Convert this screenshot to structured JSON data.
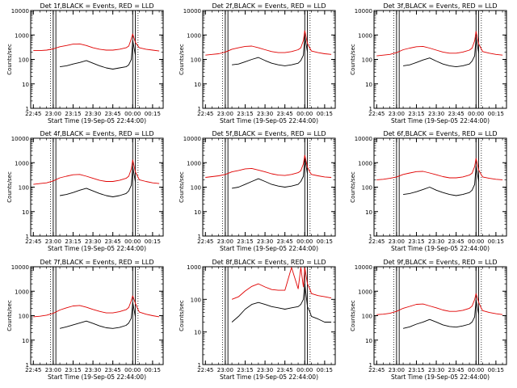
{
  "colors": {
    "events": "#000000",
    "lld": "#e00000",
    "frame": "#000000"
  },
  "chart_data": [
    {
      "type": "line",
      "title": "Det 1f,BLACK = Events, RED = LLD",
      "xlabel": "Start Time (19-Sep-05 22:44:00)",
      "ylabel": "Counts/sec",
      "y_scale": "log",
      "ylim": [
        1,
        10000
      ],
      "xlim": [
        "22:43",
        "00:23"
      ],
      "x_tick_labels": [
        "22:45",
        "23:00",
        "23:15",
        "23:30",
        "23:45",
        "00:00",
        "00:15"
      ],
      "y_tick_labels": [
        "1",
        "10",
        "100",
        "1000",
        "10000"
      ],
      "x_minutes": [
        0,
        5,
        10,
        15,
        20,
        25,
        30,
        35,
        40,
        45,
        50,
        55,
        60,
        65,
        70,
        72,
        74,
        75,
        77,
        79,
        80,
        85,
        90,
        95
      ],
      "series": [
        {
          "name": "BLACK = Events",
          "data": [
            null,
            null,
            null,
            null,
            50,
            55,
            65,
            75,
            90,
            70,
            55,
            45,
            40,
            45,
            50,
            60,
            100,
            600,
            150,
            null,
            null,
            null,
            null,
            null
          ]
        },
        {
          "name": "RED = LLD",
          "data": [
            230,
            230,
            240,
            270,
            330,
            370,
            420,
            430,
            370,
            300,
            260,
            240,
            240,
            260,
            300,
            350,
            700,
            1100,
            500,
            350,
            300,
            260,
            240,
            220
          ]
        }
      ],
      "vertical_markers_solid": [
        "23:00",
        "23:02",
        "00:00",
        "00:02"
      ],
      "vertical_markers_dotted": [
        "22:58",
        "00:04"
      ]
    },
    {
      "type": "line",
      "title": "Det 2f,BLACK = Events, RED = LLD",
      "xlabel": "Start Time (19-Sep-05 22:44:00)",
      "ylabel": "Counts/sec",
      "y_scale": "log",
      "ylim": [
        1,
        10000
      ],
      "xlim": [
        "22:43",
        "00:23"
      ],
      "x_tick_labels": [
        "22:45",
        "23:00",
        "23:15",
        "23:30",
        "23:45",
        "00:00",
        "00:15"
      ],
      "y_tick_labels": [
        "1",
        "10",
        "100",
        "1000",
        "10000"
      ],
      "x_minutes": [
        0,
        5,
        10,
        15,
        20,
        25,
        30,
        35,
        40,
        45,
        50,
        55,
        60,
        65,
        70,
        72,
        74,
        75,
        77,
        79,
        80,
        85,
        90,
        95
      ],
      "series": [
        {
          "name": "BLACK = Events",
          "data": [
            null,
            null,
            null,
            null,
            60,
            65,
            80,
            100,
            120,
            90,
            70,
            60,
            55,
            60,
            70,
            90,
            150,
            900,
            200,
            null,
            null,
            null,
            null,
            null
          ]
        },
        {
          "name": "RED = LLD",
          "data": [
            150,
            160,
            170,
            200,
            260,
            300,
            340,
            350,
            300,
            250,
            210,
            190,
            190,
            210,
            250,
            300,
            600,
            1500,
            450,
            280,
            220,
            190,
            170,
            160
          ]
        }
      ],
      "vertical_markers_solid": [
        "23:00",
        "23:02",
        "00:00",
        "00:02"
      ],
      "vertical_markers_dotted": [
        "22:58",
        "00:04"
      ]
    },
    {
      "type": "line",
      "title": "Det 3f,BLACK = Events, RED = LLD",
      "xlabel": "Start Time (19-Sep-05 22:44:00)",
      "ylabel": "Counts/sec",
      "y_scale": "log",
      "ylim": [
        1,
        10000
      ],
      "xlim": [
        "22:43",
        "00:23"
      ],
      "x_tick_labels": [
        "22:45",
        "23:00",
        "23:15",
        "23:30",
        "23:45",
        "00:00",
        "00:15"
      ],
      "y_tick_labels": [
        "1",
        "10",
        "100",
        "1000",
        "10000"
      ],
      "x_minutes": [
        0,
        5,
        10,
        15,
        20,
        25,
        30,
        35,
        40,
        45,
        50,
        55,
        60,
        65,
        70,
        72,
        74,
        75,
        77,
        79,
        80,
        85,
        90,
        95
      ],
      "series": [
        {
          "name": "BLACK = Events",
          "data": [
            null,
            null,
            null,
            null,
            55,
            60,
            75,
            95,
            115,
            85,
            65,
            55,
            50,
            55,
            65,
            85,
            140,
            800,
            180,
            null,
            null,
            null,
            null,
            null
          ]
        },
        {
          "name": "RED = LLD",
          "data": [
            140,
            150,
            160,
            190,
            250,
            290,
            330,
            340,
            290,
            240,
            200,
            180,
            180,
            200,
            240,
            290,
            580,
            1400,
            430,
            270,
            210,
            180,
            160,
            150
          ]
        }
      ],
      "vertical_markers_solid": [
        "23:00",
        "23:02",
        "00:00",
        "00:02"
      ],
      "vertical_markers_dotted": [
        "22:58",
        "00:04"
      ]
    },
    {
      "type": "line",
      "title": "Det 4f,BLACK = Events, RED = LLD",
      "xlabel": "Start Time (19-Sep-05 22:44:00)",
      "ylabel": "Counts/sec",
      "y_scale": "log",
      "ylim": [
        1,
        10000
      ],
      "xlim": [
        "22:43",
        "00:23"
      ],
      "x_tick_labels": [
        "22:45",
        "23:00",
        "23:15",
        "23:30",
        "23:45",
        "00:00",
        "00:15"
      ],
      "y_tick_labels": [
        "1",
        "10",
        "100",
        "1000",
        "10000"
      ],
      "x_minutes": [
        0,
        5,
        10,
        15,
        20,
        25,
        30,
        35,
        40,
        45,
        50,
        55,
        60,
        65,
        70,
        72,
        74,
        75,
        77,
        79,
        80,
        85,
        90,
        95
      ],
      "series": [
        {
          "name": "BLACK = Events",
          "data": [
            null,
            null,
            null,
            null,
            45,
            50,
            60,
            75,
            90,
            70,
            55,
            45,
            40,
            45,
            55,
            70,
            120,
            700,
            160,
            null,
            null,
            null,
            null,
            null
          ]
        },
        {
          "name": "RED = LLD",
          "data": [
            130,
            140,
            150,
            180,
            240,
            280,
            320,
            330,
            280,
            230,
            190,
            170,
            170,
            190,
            230,
            280,
            560,
            1300,
            420,
            260,
            200,
            170,
            150,
            140
          ]
        }
      ],
      "vertical_markers_solid": [
        "23:00",
        "23:02",
        "00:00",
        "00:02"
      ],
      "vertical_markers_dotted": [
        "22:58",
        "00:04"
      ]
    },
    {
      "type": "line",
      "title": "Det 5f,BLACK = Events, RED = LLD",
      "xlabel": "Start Time (19-Sep-05 22:44:00)",
      "ylabel": "Counts/sec",
      "y_scale": "log",
      "ylim": [
        1,
        10000
      ],
      "xlim": [
        "22:43",
        "00:23"
      ],
      "x_tick_labels": [
        "22:45",
        "23:00",
        "23:15",
        "23:30",
        "23:45",
        "00:00",
        "00:15"
      ],
      "y_tick_labels": [
        "1",
        "10",
        "100",
        "1000",
        "10000"
      ],
      "x_minutes": [
        0,
        5,
        10,
        15,
        20,
        25,
        30,
        35,
        40,
        45,
        50,
        55,
        60,
        65,
        70,
        72,
        74,
        75,
        77,
        79,
        80,
        85,
        90,
        95
      ],
      "series": [
        {
          "name": "BLACK = Events",
          "data": [
            null,
            null,
            null,
            null,
            90,
            100,
            130,
            170,
            220,
            170,
            130,
            110,
            100,
            110,
            130,
            170,
            280,
            1500,
            350,
            null,
            null,
            null,
            null,
            null
          ]
        },
        {
          "name": "RED = LLD",
          "data": [
            250,
            270,
            290,
            330,
            420,
            480,
            560,
            580,
            500,
            420,
            350,
            310,
            300,
            330,
            390,
            470,
            900,
            2000,
            650,
            400,
            330,
            290,
            260,
            250
          ]
        }
      ],
      "vertical_markers_solid": [
        "23:00",
        "23:02",
        "00:00",
        "00:02"
      ],
      "vertical_markers_dotted": [
        "22:58",
        "00:04"
      ]
    },
    {
      "type": "line",
      "title": "Det 6f,BLACK = Events, RED = LLD",
      "xlabel": "Start Time (19-Sep-05 22:44:00)",
      "ylabel": "Counts/sec",
      "y_scale": "log",
      "ylim": [
        1,
        10000
      ],
      "xlim": [
        "22:43",
        "00:23"
      ],
      "x_tick_labels": [
        "22:45",
        "23:00",
        "23:15",
        "23:30",
        "23:45",
        "00:00",
        "00:15"
      ],
      "y_tick_labels": [
        "1",
        "10",
        "100",
        "1000",
        "10000"
      ],
      "x_minutes": [
        0,
        5,
        10,
        15,
        20,
        25,
        30,
        35,
        40,
        45,
        50,
        55,
        60,
        65,
        70,
        72,
        74,
        75,
        77,
        79,
        80,
        85,
        90,
        95
      ],
      "series": [
        {
          "name": "BLACK = Events",
          "data": [
            null,
            null,
            null,
            null,
            50,
            55,
            65,
            80,
            100,
            75,
            60,
            50,
            45,
            50,
            60,
            75,
            130,
            750,
            170,
            null,
            null,
            null,
            null,
            null
          ]
        },
        {
          "name": "RED = LLD",
          "data": [
            200,
            210,
            230,
            260,
            330,
            380,
            430,
            440,
            380,
            320,
            270,
            240,
            240,
            260,
            310,
            370,
            700,
            1500,
            500,
            320,
            260,
            230,
            210,
            200
          ]
        }
      ],
      "vertical_markers_solid": [
        "23:00",
        "23:02",
        "00:00",
        "00:02"
      ],
      "vertical_markers_dotted": [
        "22:58",
        "00:04"
      ]
    },
    {
      "type": "line",
      "title": "Det 7f,BLACK = Events, RED = LLD",
      "xlabel": "Start Time (19-Sep-05 22:44:00)",
      "ylabel": "Counts/sec",
      "y_scale": "log",
      "ylim": [
        1,
        10000
      ],
      "xlim": [
        "22:43",
        "00:23"
      ],
      "x_tick_labels": [
        "22:45",
        "23:00",
        "23:15",
        "23:30",
        "23:45",
        "00:00",
        "00:15"
      ],
      "y_tick_labels": [
        "1",
        "10",
        "100",
        "1000",
        "10000"
      ],
      "x_minutes": [
        0,
        5,
        10,
        15,
        20,
        25,
        30,
        35,
        40,
        45,
        50,
        55,
        60,
        65,
        70,
        72,
        74,
        75,
        77,
        79,
        80,
        85,
        90,
        95
      ],
      "series": [
        {
          "name": "BLACK = Events",
          "data": [
            null,
            null,
            null,
            null,
            30,
            35,
            42,
            50,
            60,
            48,
            38,
            32,
            30,
            33,
            40,
            50,
            80,
            350,
            90,
            null,
            null,
            null,
            null,
            null
          ]
        },
        {
          "name": "RED = LLD",
          "data": [
            90,
            95,
            105,
            125,
            170,
            210,
            250,
            260,
            220,
            180,
            150,
            130,
            130,
            145,
            175,
            215,
            420,
            650,
            320,
            180,
            140,
            115,
            100,
            90
          ]
        }
      ],
      "vertical_markers_solid": [
        "23:00",
        "23:02",
        "00:00",
        "00:02"
      ],
      "vertical_markers_dotted": [
        "22:58",
        "00:04"
      ]
    },
    {
      "type": "line",
      "title": "Det 8f,BLACK = Events, RED = LLD",
      "xlabel": "Start Time (19-Sep-05 22:44:00)",
      "ylabel": "Counts/sec",
      "y_scale": "log",
      "ylim": [
        1,
        1000
      ],
      "xlim": [
        "22:43",
        "00:23"
      ],
      "x_tick_labels": [
        "22:45",
        "23:00",
        "23:15",
        "23:30",
        "23:45",
        "00:00",
        "00:15"
      ],
      "y_tick_labels": [
        "1",
        "10",
        "100",
        "1000"
      ],
      "x_minutes": [
        0,
        5,
        10,
        15,
        20,
        25,
        30,
        35,
        40,
        45,
        50,
        55,
        60,
        65,
        70,
        72,
        74,
        75,
        77,
        79,
        80,
        85,
        90,
        95
      ],
      "series": [
        {
          "name": "BLACK = Events",
          "data": [
            null,
            null,
            null,
            null,
            20,
            30,
            50,
            70,
            80,
            70,
            60,
            55,
            50,
            55,
            60,
            70,
            100,
            300,
            60,
            40,
            30,
            25,
            20,
            20
          ]
        },
        {
          "name": "RED = LLD",
          "data": [
            null,
            null,
            null,
            null,
            100,
            120,
            180,
            250,
            300,
            240,
            200,
            190,
            190,
            950,
            210,
            950,
            240,
            950,
            300,
            200,
            150,
            130,
            120,
            110
          ]
        }
      ],
      "vertical_markers_solid": [
        "23:00",
        "23:02",
        "00:00",
        "00:02"
      ],
      "vertical_markers_dotted": [
        "22:58",
        "00:04"
      ]
    },
    {
      "type": "line",
      "title": "Det 9f,BLACK = Events, RED = LLD",
      "xlabel": "Start Time (19-Sep-05 22:44:00)",
      "ylabel": "Counts/sec",
      "y_scale": "log",
      "ylim": [
        1,
        10000
      ],
      "xlim": [
        "22:43",
        "00:23"
      ],
      "x_tick_labels": [
        "22:45",
        "23:00",
        "23:15",
        "23:30",
        "23:45",
        "00:00",
        "00:15"
      ],
      "y_tick_labels": [
        "1",
        "10",
        "100",
        "1000",
        "10000"
      ],
      "x_minutes": [
        0,
        5,
        10,
        15,
        20,
        25,
        30,
        35,
        40,
        45,
        50,
        55,
        60,
        65,
        70,
        72,
        74,
        75,
        77,
        79,
        80,
        85,
        90,
        95
      ],
      "series": [
        {
          "name": "BLACK = Events",
          "data": [
            null,
            null,
            null,
            null,
            30,
            35,
            45,
            55,
            70,
            55,
            42,
            36,
            34,
            38,
            45,
            55,
            90,
            450,
            110,
            null,
            null,
            null,
            null,
            null
          ]
        },
        {
          "name": "RED = LLD",
          "data": [
            110,
            115,
            125,
            150,
            200,
            240,
            290,
            300,
            250,
            210,
            170,
            150,
            150,
            165,
            200,
            245,
            460,
            800,
            350,
            200,
            160,
            135,
            120,
            110
          ]
        }
      ],
      "vertical_markers_solid": [
        "23:00",
        "23:02",
        "00:00",
        "00:02"
      ],
      "vertical_markers_dotted": [
        "22:58",
        "00:04"
      ]
    }
  ]
}
